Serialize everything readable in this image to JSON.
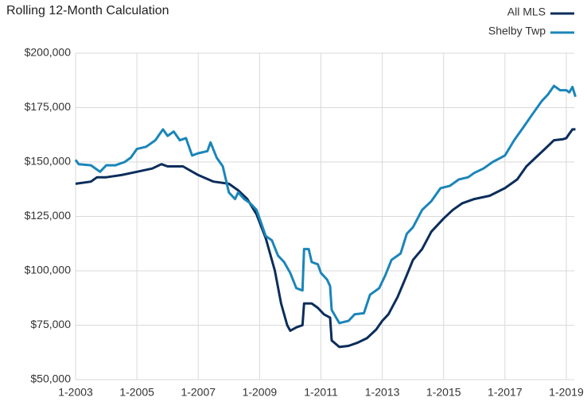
{
  "chart_data": {
    "type": "line",
    "title": "Rolling 12-Month Calculation",
    "xlim": [
      2003,
      2019.3
    ],
    "xticks": [
      {
        "value": 2003,
        "label": "1-2003"
      },
      {
        "value": 2005,
        "label": "1-2005"
      },
      {
        "value": 2007,
        "label": "1-2007"
      },
      {
        "value": 2009,
        "label": "1-2009"
      },
      {
        "value": 2011,
        "label": "1-2011"
      },
      {
        "value": 2013,
        "label": "1-2013"
      },
      {
        "value": 2015,
        "label": "1-2015"
      },
      {
        "value": 2017,
        "label": "1-2017"
      },
      {
        "value": 2019,
        "label": "1-2019"
      }
    ],
    "ylim": [
      50000,
      200000
    ],
    "yticks": [
      {
        "value": 50000,
        "label": "$50,000"
      },
      {
        "value": 75000,
        "label": "$75,000"
      },
      {
        "value": 100000,
        "label": "$100,000"
      },
      {
        "value": 125000,
        "label": "$125,000"
      },
      {
        "value": 150000,
        "label": "$150,000"
      },
      {
        "value": 175000,
        "label": "$175,000"
      },
      {
        "value": 200000,
        "label": "$200,000"
      }
    ],
    "grid": true,
    "legend": "top-right",
    "series": [
      {
        "name": "All MLS",
        "color": "#0b2d5b",
        "x": [
          2003.0,
          2003.5,
          2003.7,
          2004.0,
          2004.5,
          2005.0,
          2005.5,
          2005.8,
          2006.0,
          2006.5,
          2007.0,
          2007.5,
          2008.0,
          2008.3,
          2008.6,
          2008.9,
          2009.2,
          2009.5,
          2009.7,
          2009.9,
          2010.0,
          2010.2,
          2010.4,
          2010.45,
          2010.7,
          2010.9,
          2011.1,
          2011.3,
          2011.35,
          2011.6,
          2011.9,
          2012.2,
          2012.5,
          2012.8,
          2013.0,
          2013.2,
          2013.5,
          2013.8,
          2014.0,
          2014.3,
          2014.6,
          2015.0,
          2015.3,
          2015.6,
          2016.0,
          2016.5,
          2017.0,
          2017.4,
          2017.7,
          2018.0,
          2018.3,
          2018.6,
          2018.9,
          2019.0,
          2019.1,
          2019.2,
          2019.3
        ],
        "values": [
          140000,
          141000,
          143000,
          143000,
          144000,
          145500,
          147000,
          149000,
          148000,
          148000,
          144000,
          141000,
          140000,
          137000,
          133000,
          126000,
          115000,
          100000,
          85000,
          75000,
          72500,
          74000,
          75000,
          85000,
          85000,
          83000,
          80000,
          78500,
          68000,
          65000,
          65500,
          67000,
          69000,
          73000,
          77000,
          80000,
          88000,
          98000,
          105000,
          110000,
          118000,
          124000,
          128000,
          131000,
          133000,
          134500,
          138000,
          142000,
          148000,
          152000,
          156000,
          160000,
          160500,
          161000,
          163000,
          165000,
          165000
        ]
      },
      {
        "name": "Shelby Twp",
        "color": "#1a85b8",
        "x": [
          2003.0,
          2003.1,
          2003.5,
          2003.8,
          2004.0,
          2004.3,
          2004.6,
          2004.8,
          2005.0,
          2005.3,
          2005.6,
          2005.85,
          2006.0,
          2006.2,
          2006.4,
          2006.6,
          2006.8,
          2007.0,
          2007.3,
          2007.4,
          2007.6,
          2007.8,
          2008.0,
          2008.2,
          2008.3,
          2008.5,
          2008.7,
          2008.9,
          2009.0,
          2009.2,
          2009.4,
          2009.6,
          2009.8,
          2010.0,
          2010.2,
          2010.4,
          2010.45,
          2010.6,
          2010.7,
          2010.9,
          2011.0,
          2011.2,
          2011.3,
          2011.35,
          2011.6,
          2011.9,
          2012.1,
          2012.4,
          2012.6,
          2012.9,
          2013.1,
          2013.3,
          2013.6,
          2013.8,
          2014.0,
          2014.3,
          2014.6,
          2014.9,
          2015.2,
          2015.5,
          2015.8,
          2016.0,
          2016.3,
          2016.6,
          2017.0,
          2017.3,
          2017.6,
          2017.9,
          2018.2,
          2018.4,
          2018.6,
          2018.8,
          2019.0,
          2019.1,
          2019.2,
          2019.3
        ],
        "values": [
          151000,
          149000,
          148500,
          145500,
          148500,
          148500,
          150000,
          152000,
          156000,
          157000,
          160000,
          165000,
          162000,
          164000,
          160000,
          161000,
          153000,
          154000,
          155000,
          159000,
          152000,
          148000,
          136000,
          133000,
          136000,
          133000,
          131000,
          128000,
          124000,
          116000,
          114000,
          107000,
          104000,
          99000,
          92000,
          91000,
          110000,
          110000,
          104000,
          103000,
          99000,
          96000,
          93000,
          82000,
          76000,
          77000,
          80000,
          80500,
          89000,
          92000,
          98000,
          105000,
          108000,
          117000,
          120000,
          128000,
          132000,
          138000,
          139000,
          142000,
          143000,
          145000,
          147000,
          150000,
          153000,
          160000,
          166000,
          172000,
          178000,
          181000,
          185000,
          183000,
          183000,
          182000,
          184500,
          180000
        ]
      }
    ]
  }
}
